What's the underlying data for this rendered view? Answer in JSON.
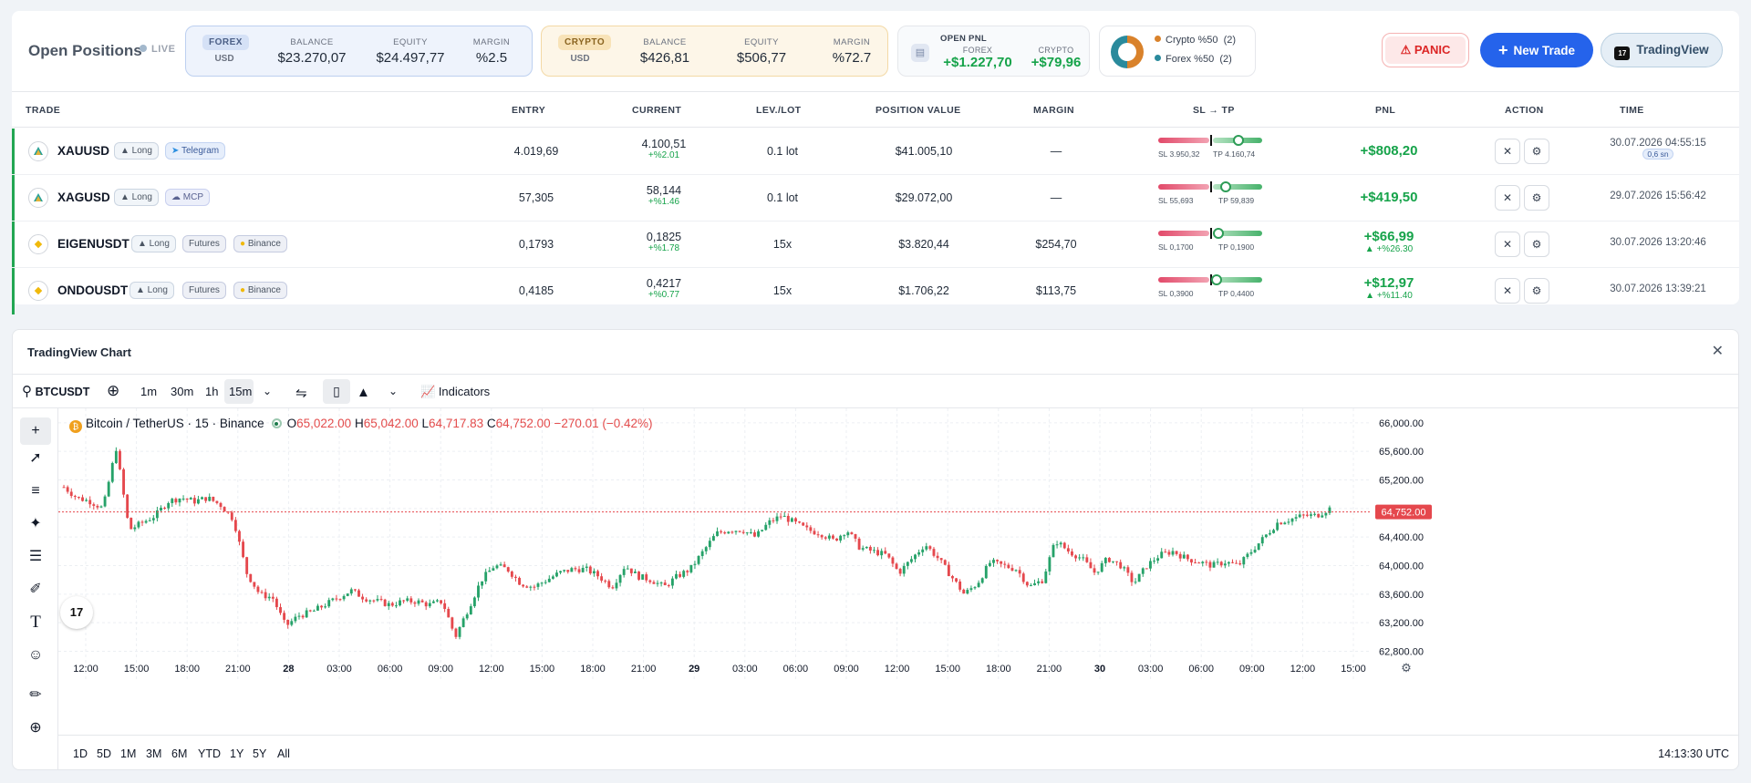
{
  "header": {
    "title": "Open Positions",
    "live": "LIVE",
    "forex": {
      "tag": "FOREX",
      "ccy": "USD",
      "balance_label": "BALANCE",
      "balance": "$23.270,07",
      "equity_label": "EQUITY",
      "equity": "$24.497,77",
      "margin_label": "MARGIN",
      "margin": "%2.5"
    },
    "crypto": {
      "tag": "CRYPTO",
      "ccy": "USD",
      "balance_label": "BALANCE",
      "balance": "$426,81",
      "equity_label": "EQUITY",
      "equity": "$506,77",
      "margin_label": "MARGIN",
      "margin": "%72.7"
    },
    "open_pnl": {
      "label": "OPEN PNL",
      "forex_label": "FOREX",
      "forex": "+$1.227,70",
      "crypto_label": "CRYPTO",
      "crypto": "+$79,96"
    },
    "distribution": [
      {
        "label": "Crypto %50",
        "count": "(2)",
        "color": "#d9822b"
      },
      {
        "label": "Forex %50",
        "count": "(2)",
        "color": "#2a8a9c"
      }
    ],
    "panic": "PANIC",
    "new_trade": "New Trade",
    "tradingview": "TradingView"
  },
  "table": {
    "columns": [
      "TRADE",
      "ENTRY",
      "CURRENT",
      "LEV./LOT",
      "POSITION VALUE",
      "MARGIN",
      "SL → TP",
      "PNL",
      "ACTION",
      "TIME"
    ],
    "rows": [
      {
        "symbol": "XAUUSD",
        "side": "▲ Long",
        "tags": [
          "Telegram"
        ],
        "entry": "4.019,69",
        "current": "4.100,51",
        "change": "+%2.01",
        "lev": "0.1 lot",
        "value": "$41.005,10",
        "margin": "—",
        "sl": "SL 3.950,32",
        "tp": "TP 4.160,74",
        "sltp_pos": 0.5,
        "pnl": "+$808,20",
        "pnl_pct": "",
        "time": "30.07.2026 04:55:15",
        "time_badge": "0,6 sn"
      },
      {
        "symbol": "XAGUSD",
        "side": "▲ Long",
        "tags": [
          "MCP"
        ],
        "entry": "57,305",
        "current": "58,144",
        "change": "+%1.46",
        "lev": "0.1 lot",
        "value": "$29.072,00",
        "margin": "—",
        "sl": "SL 55,693",
        "tp": "TP 59,839",
        "sltp_pos": 0.33,
        "pnl": "+$419,50",
        "pnl_pct": "",
        "time": "29.07.2026 15:56:42",
        "time_badge": ""
      },
      {
        "symbol": "EIGENUSDT",
        "side": "▲ Long",
        "tags": [
          "Futures",
          "Binance"
        ],
        "entry": "0,1793",
        "current": "0,1825",
        "change": "+%1.78",
        "lev": "15x",
        "value": "$3.820,44",
        "margin": "$254,70",
        "sl": "SL 0,1700",
        "tp": "TP 0,1900",
        "sltp_pos": 0.62,
        "pnl": "+$66,99",
        "pnl_pct": "▲ +%26.30",
        "time": "30.07.2026 13:20:46",
        "time_badge": ""
      },
      {
        "symbol": "ONDOUSDT",
        "side": "▲ Long",
        "tags": [
          "Futures",
          "Binance"
        ],
        "entry": "0,4185",
        "current": "0,4217",
        "change": "+%0.77",
        "lev": "15x",
        "value": "$1.706,22",
        "margin": "$113,75",
        "sl": "SL 0,3900",
        "tp": "TP 0,4400",
        "sltp_pos": 0.64,
        "pnl": "+$12,97",
        "pnl_pct": "▲ +%11.40",
        "time": "30.07.2026 13:39:21",
        "time_badge": ""
      }
    ]
  },
  "chart": {
    "panel_title": "TradingView Chart",
    "symbol": "BTCUSDT",
    "intervals": [
      "1m",
      "30m",
      "1h",
      "15m"
    ],
    "indicators": "Indicators",
    "legend": {
      "name": "Bitcoin / TetherUS · 15 · Binance",
      "o": "65,022.00",
      "h": "65,042.00",
      "l": "64,717.83",
      "c": "64,752.00",
      "chg": "−270.01 (−0.42%)"
    },
    "ranges": [
      "1D",
      "5D",
      "1M",
      "3M",
      "6M",
      "YTD",
      "1Y",
      "5Y",
      "All"
    ],
    "clock": "14:13:30 UTC",
    "last_price": "64,752.00",
    "tv_badge": "17"
  },
  "chart_data": {
    "type": "candlestick",
    "title": "Bitcoin / TetherUS · 15 · Binance",
    "xlabel": "",
    "ylabel": "",
    "ylim": [
      62500,
      66100
    ],
    "yticks": [
      "66,000.00",
      "65,600.00",
      "65,200.00",
      "64,800.00",
      "64,400.00",
      "64,000.00",
      "63,600.00",
      "63,200.00",
      "62,800.00"
    ],
    "xticks": [
      "12:00",
      "15:00",
      "18:00",
      "21:00",
      "28",
      "03:00",
      "06:00",
      "09:00",
      "12:00",
      "15:00",
      "18:00",
      "21:00",
      "29",
      "03:00",
      "06:00",
      "09:00",
      "12:00",
      "15:00",
      "18:00",
      "21:00",
      "30",
      "03:00",
      "06:00",
      "09:00",
      "12:00",
      "15:00"
    ],
    "bold_xticks": [
      "28",
      "29",
      "30"
    ],
    "close_path": [
      [
        0,
        65100
      ],
      [
        2,
        64950
      ],
      [
        4,
        64900
      ],
      [
        6,
        64800
      ],
      [
        8,
        65650
      ],
      [
        10,
        64500
      ],
      [
        12,
        64600
      ],
      [
        14,
        64700
      ],
      [
        16,
        64900
      ],
      [
        18,
        64950
      ],
      [
        20,
        64900
      ],
      [
        22,
        64950
      ],
      [
        24,
        64850
      ],
      [
        26,
        64650
      ],
      [
        28,
        63900
      ],
      [
        30,
        63600
      ],
      [
        32,
        63550
      ],
      [
        34,
        63150
      ],
      [
        36,
        63300
      ],
      [
        38,
        63350
      ],
      [
        40,
        63450
      ],
      [
        42,
        63550
      ],
      [
        44,
        63650
      ],
      [
        46,
        63550
      ],
      [
        48,
        63500
      ],
      [
        50,
        63450
      ],
      [
        52,
        63500
      ],
      [
        54,
        63500
      ],
      [
        56,
        63450
      ],
      [
        58,
        63500
      ],
      [
        60,
        63000
      ],
      [
        62,
        63400
      ],
      [
        64,
        63800
      ],
      [
        66,
        64000
      ],
      [
        68,
        63950
      ],
      [
        70,
        63750
      ],
      [
        72,
        63700
      ],
      [
        74,
        63800
      ],
      [
        76,
        63900
      ],
      [
        78,
        63950
      ],
      [
        80,
        63950
      ],
      [
        82,
        63850
      ],
      [
        84,
        63700
      ],
      [
        86,
        64000
      ],
      [
        88,
        63850
      ],
      [
        90,
        63800
      ],
      [
        92,
        63700
      ],
      [
        94,
        63850
      ],
      [
        96,
        63950
      ],
      [
        98,
        64200
      ],
      [
        100,
        64450
      ],
      [
        102,
        64500
      ],
      [
        104,
        64500
      ],
      [
        106,
        64400
      ],
      [
        108,
        64600
      ],
      [
        110,
        64700
      ],
      [
        112,
        64600
      ],
      [
        114,
        64500
      ],
      [
        116,
        64450
      ],
      [
        118,
        64350
      ],
      [
        120,
        64500
      ],
      [
        122,
        64250
      ],
      [
        124,
        64200
      ],
      [
        126,
        64150
      ],
      [
        128,
        63900
      ],
      [
        130,
        64100
      ],
      [
        132,
        64300
      ],
      [
        134,
        64100
      ],
      [
        136,
        63850
      ],
      [
        138,
        63600
      ],
      [
        140,
        63750
      ],
      [
        142,
        64050
      ],
      [
        144,
        64000
      ],
      [
        146,
        63950
      ],
      [
        148,
        63700
      ],
      [
        150,
        63800
      ],
      [
        152,
        64350
      ],
      [
        154,
        64200
      ],
      [
        156,
        64100
      ],
      [
        158,
        63900
      ],
      [
        160,
        64100
      ],
      [
        162,
        64000
      ],
      [
        164,
        63750
      ],
      [
        166,
        64000
      ],
      [
        168,
        64150
      ],
      [
        170,
        64200
      ],
      [
        172,
        64100
      ],
      [
        174,
        64050
      ],
      [
        176,
        64000
      ],
      [
        178,
        64050
      ],
      [
        180,
        64000
      ],
      [
        182,
        64200
      ],
      [
        184,
        64400
      ],
      [
        186,
        64600
      ],
      [
        188,
        64650
      ],
      [
        190,
        64700
      ],
      [
        192,
        64700
      ],
      [
        194,
        64800
      ]
    ],
    "last": 64752
  }
}
